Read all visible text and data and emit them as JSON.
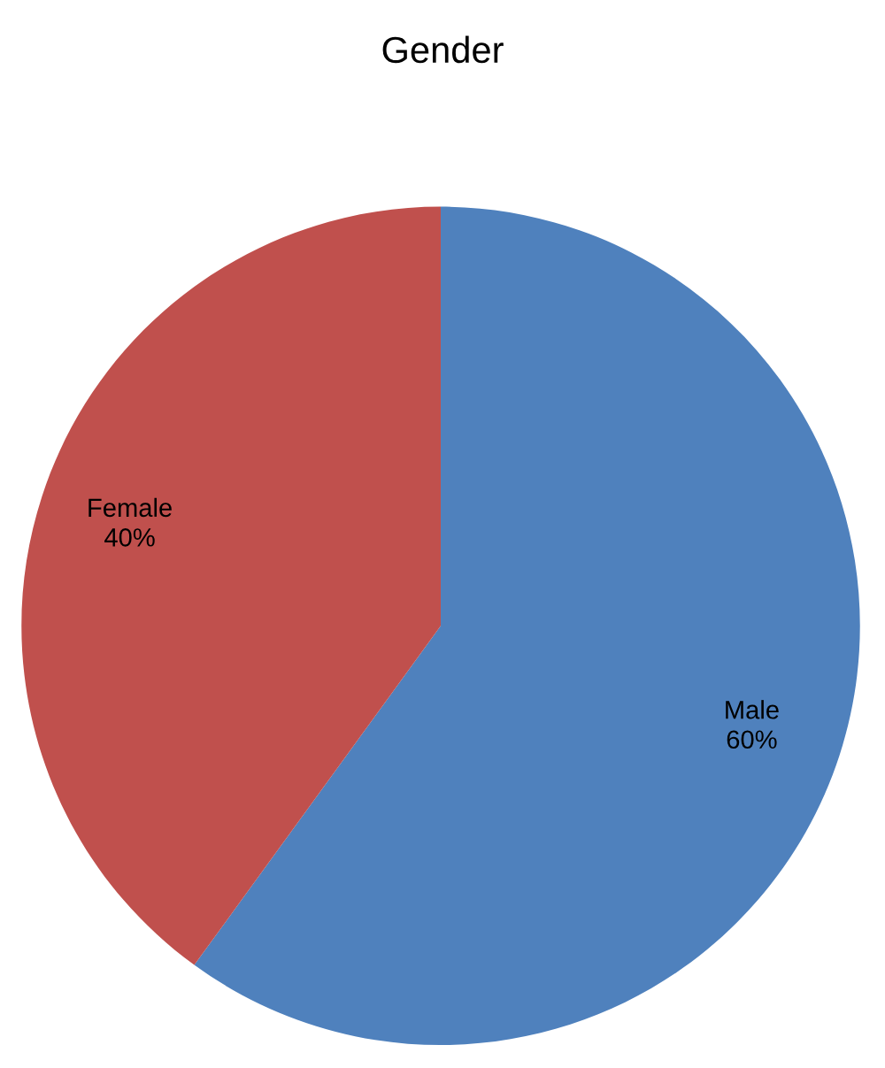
{
  "chart_data": {
    "type": "pie",
    "title": "Gender",
    "categories": [
      "Male",
      "Female"
    ],
    "values": [
      60,
      40
    ],
    "colors": [
      "#4f81bd",
      "#c0504d"
    ],
    "value_labels": [
      "60%",
      "40%"
    ]
  }
}
